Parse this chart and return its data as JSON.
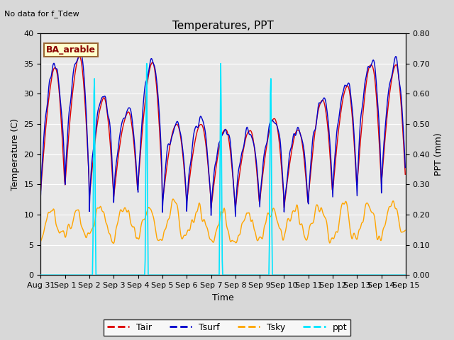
{
  "title": "Temperatures, PPT",
  "subtitle": "No data for f_Tdew",
  "box_label": "BA_arable",
  "xlabel": "Time",
  "ylabel_left": "Temperature (C)",
  "ylabel_right": "PPT (mm)",
  "ylim_left": [
    0,
    40
  ],
  "ylim_right": [
    0.0,
    0.8
  ],
  "yticks_left": [
    0,
    5,
    10,
    15,
    20,
    25,
    30,
    35,
    40
  ],
  "yticks_right": [
    0.0,
    0.1,
    0.2,
    0.3,
    0.4,
    0.5,
    0.6,
    0.7,
    0.8
  ],
  "bg_color": "#d8d8d8",
  "plot_bg_color": "#e8e8e8",
  "tair_color": "#dd0000",
  "tsurf_color": "#0000cc",
  "tsky_color": "#ffa500",
  "ppt_color": "#00e5ff",
  "figsize": [
    6.4,
    4.8
  ],
  "dpi": 100
}
